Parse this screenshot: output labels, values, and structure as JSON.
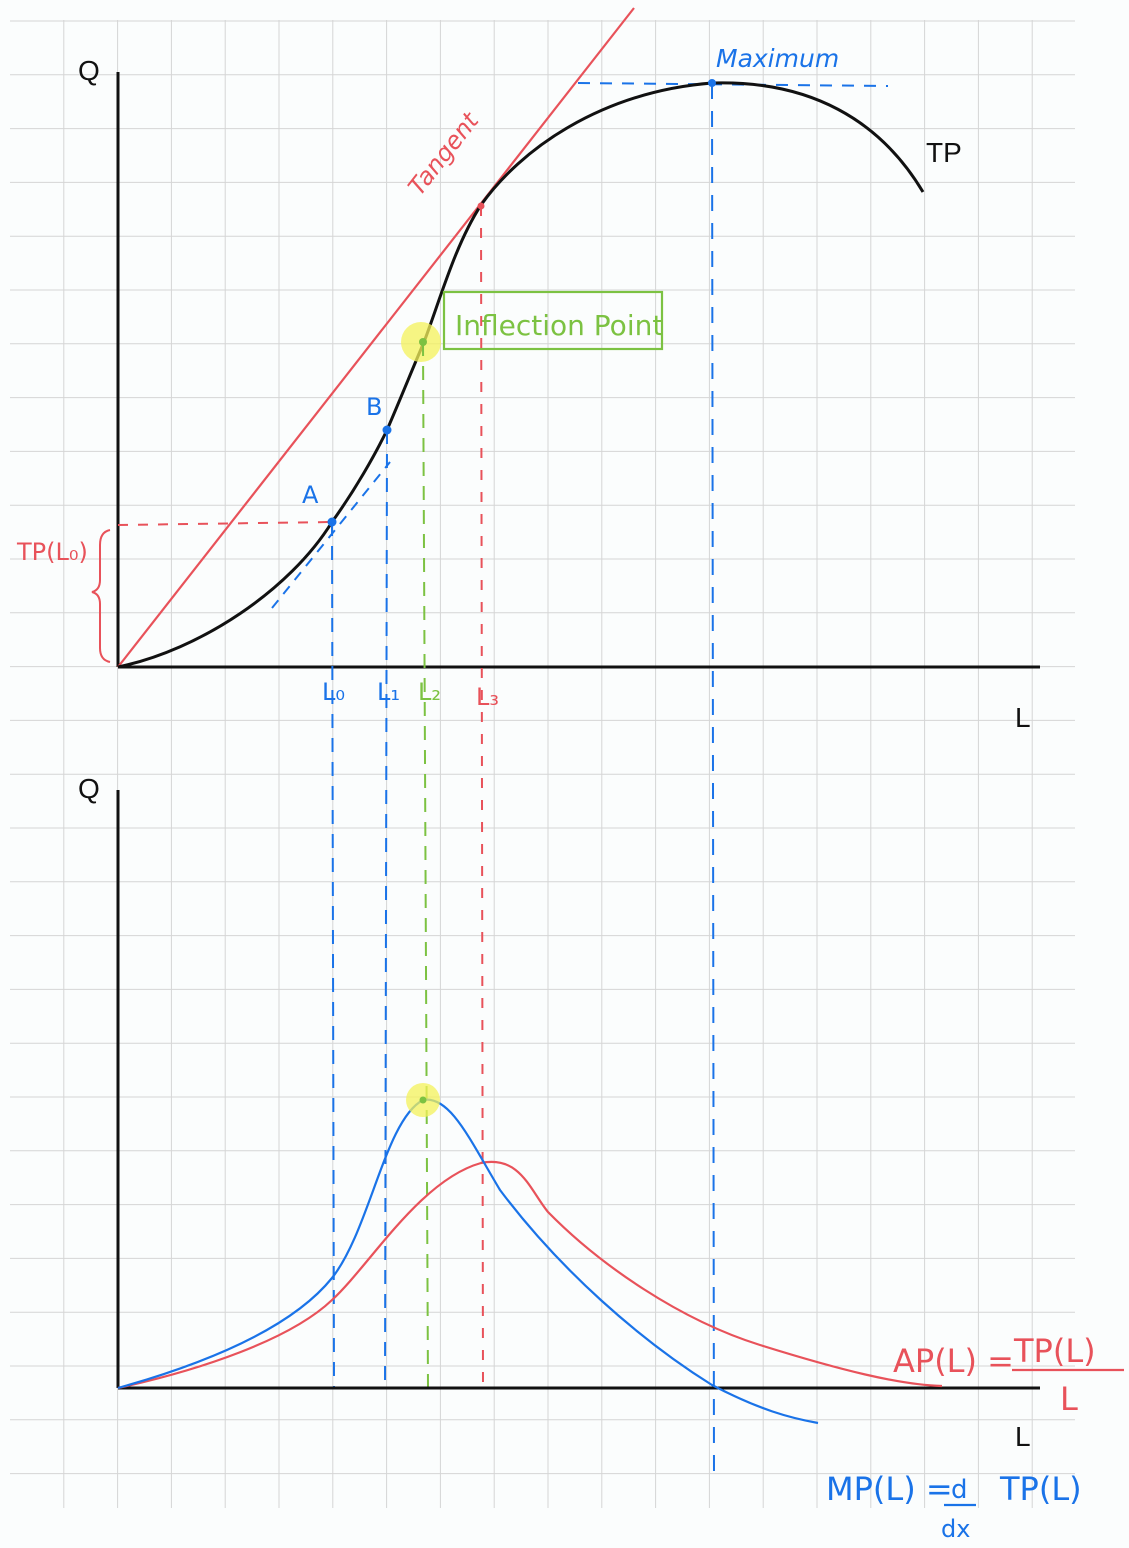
{
  "colors": {
    "grid": "#d5d5d5",
    "axis": "#111111",
    "tp_curve": "#111111",
    "tangent": "#e8525a",
    "blue": "#1a73e8",
    "green": "#7cc242",
    "highlight": "#f4f25a",
    "background": "#fbfdfd"
  },
  "top_panel": {
    "y_axis_label": "Q",
    "x_axis_label": "L",
    "curve_label": "TP",
    "maximum_label": "Maximum",
    "tangent_label": "Tangent",
    "inflection_label": "Inflection Point",
    "point_a_label": "A",
    "point_b_label": "B",
    "tp_l0_label": "TP(L₀)",
    "l_ticks": {
      "l0": "L₀",
      "l1": "L₁",
      "l2": "L₂",
      "l3": "L₃"
    }
  },
  "bottom_panel": {
    "y_axis_label": "Q",
    "x_axis_label": "L",
    "ap_formula": {
      "lhs": "AP(L) =",
      "numerator": "TP(L)",
      "denominator": "L"
    },
    "mp_formula": {
      "lhs": "MP(L) =",
      "d_num": "d",
      "d_den": "dx",
      "rhs": "TP(L)"
    }
  }
}
